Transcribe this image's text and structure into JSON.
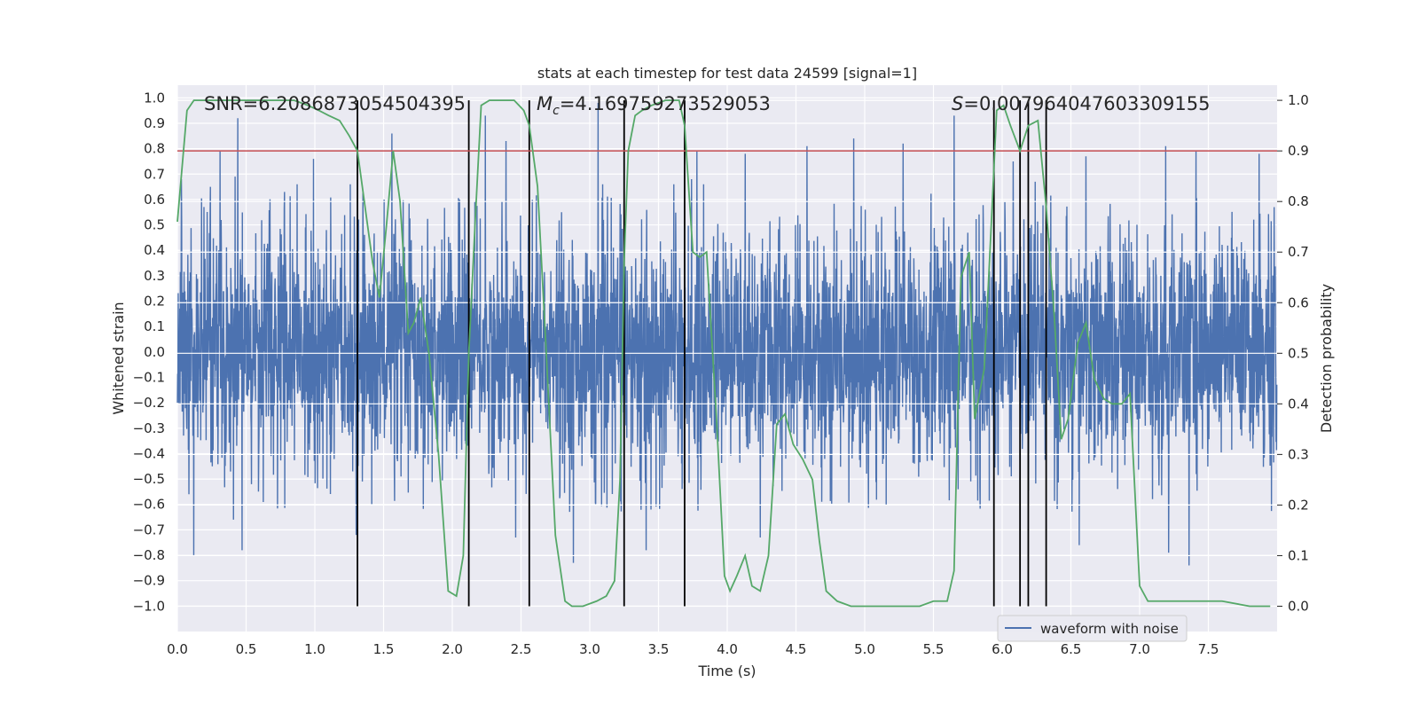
{
  "chart_data": {
    "type": "line",
    "title": "stats at each timestep for test data 24599 [signal=1]",
    "xlabel": "Time (s)",
    "ylabel": "Whitened strain",
    "y2label": "Detection probability",
    "xlim": [
      0.0,
      8.0
    ],
    "ylim": [
      -1.1,
      1.05
    ],
    "y2lim": [
      -0.05,
      1.03
    ],
    "x_ticks": [
      "0.0",
      "0.5",
      "1.0",
      "1.5",
      "2.0",
      "2.5",
      "3.0",
      "3.5",
      "4.0",
      "4.5",
      "5.0",
      "5.5",
      "6.0",
      "6.5",
      "7.0",
      "7.5"
    ],
    "y_ticks": [
      "1.0",
      "0.9",
      "0.8",
      "0.7",
      "0.6",
      "0.5",
      "0.4",
      "0.3",
      "0.2",
      "0.1",
      "0.0",
      "-0.1",
      "-0.2",
      "-0.3",
      "-0.4",
      "-0.5",
      "-0.6",
      "-0.7",
      "-0.8",
      "-0.9",
      "-1.0"
    ],
    "y2_ticks": [
      "1.0",
      "0.9",
      "0.8",
      "0.7",
      "0.6",
      "0.5",
      "0.4",
      "0.3",
      "0.2",
      "0.1",
      "0.0"
    ],
    "annotations": {
      "snr": "SNR=6.2086873054504395",
      "mc_symbol": "M",
      "mc_sub": "c",
      "mc_value": "=4.169759273529053",
      "s_symbol": "S",
      "s_value": "=0.007964047603309155"
    },
    "threshold": 0.9,
    "threshold_color": "#c44e52",
    "vertical_lines": [
      1.31,
      2.12,
      2.56,
      3.25,
      3.69,
      5.94,
      6.13,
      6.19,
      6.32
    ],
    "legend": {
      "label": "waveform with noise",
      "location": "lower-right"
    },
    "series": [
      {
        "name": "waveform with noise",
        "color": "#4c72b0",
        "axis": "left",
        "n_samples": 4096,
        "core_amplitude": 0.38,
        "peaks": [
          {
            "t": 0.03,
            "v": 0.68
          },
          {
            "t": 0.24,
            "v": 0.65
          },
          {
            "t": 0.31,
            "v": 0.79
          },
          {
            "t": 0.42,
            "v": 0.69
          },
          {
            "t": 0.44,
            "v": 0.92
          },
          {
            "t": 0.47,
            "v": 0.79
          },
          {
            "t": 0.78,
            "v": 0.63
          },
          {
            "t": 0.99,
            "v": 0.76
          },
          {
            "t": 1.56,
            "v": 0.86
          },
          {
            "t": 2.12,
            "v": 0.7
          },
          {
            "t": 2.24,
            "v": 0.93
          },
          {
            "t": 2.39,
            "v": 0.83
          },
          {
            "t": 3.06,
            "v": 0.98
          },
          {
            "t": 3.74,
            "v": 0.68
          },
          {
            "t": 3.78,
            "v": 0.79
          },
          {
            "t": 4.13,
            "v": 0.78
          },
          {
            "t": 4.58,
            "v": 0.81
          },
          {
            "t": 4.92,
            "v": 0.84
          },
          {
            "t": 5.28,
            "v": 0.82
          },
          {
            "t": 5.65,
            "v": 0.93
          },
          {
            "t": 6.08,
            "v": 0.75
          },
          {
            "t": 6.24,
            "v": 0.67
          },
          {
            "t": 6.61,
            "v": 0.77
          },
          {
            "t": 7.19,
            "v": 0.81
          },
          {
            "t": 7.41,
            "v": 0.79
          },
          {
            "t": 7.87,
            "v": 0.78
          },
          {
            "t": 0.12,
            "v": -0.8
          },
          {
            "t": 0.47,
            "v": -0.78
          },
          {
            "t": 1.3,
            "v": -0.72
          },
          {
            "t": 2.46,
            "v": -0.73
          },
          {
            "t": 2.88,
            "v": -0.83
          },
          {
            "t": 3.41,
            "v": -0.78
          },
          {
            "t": 4.24,
            "v": -0.73
          },
          {
            "t": 6.56,
            "v": -0.76
          },
          {
            "t": 7.21,
            "v": -0.79
          },
          {
            "t": 7.36,
            "v": -0.84
          }
        ]
      },
      {
        "name": "detection probability",
        "color": "#55a868",
        "axis": "right",
        "x": [
          0.0,
          0.07,
          0.12,
          0.25,
          0.4,
          0.55,
          0.7,
          0.85,
          0.95,
          1.03,
          1.1,
          1.18,
          1.25,
          1.31,
          1.38,
          1.42,
          1.47,
          1.52,
          1.57,
          1.62,
          1.68,
          1.72,
          1.77,
          1.83,
          1.9,
          1.97,
          2.03,
          2.08,
          2.12,
          2.17,
          2.21,
          2.27,
          2.33,
          2.45,
          2.52,
          2.56,
          2.62,
          2.68,
          2.75,
          2.82,
          2.87,
          2.95,
          3.05,
          3.12,
          3.18,
          3.22,
          3.25,
          3.28,
          3.33,
          3.38,
          3.45,
          3.55,
          3.65,
          3.69,
          3.75,
          3.8,
          3.85,
          3.92,
          3.98,
          4.02,
          4.07,
          4.13,
          4.18,
          4.24,
          4.3,
          4.36,
          4.42,
          4.48,
          4.55,
          4.62,
          4.67,
          4.72,
          4.8,
          4.9,
          5.0,
          5.2,
          5.4,
          5.5,
          5.6,
          5.65,
          5.7,
          5.76,
          5.8,
          5.87,
          5.92,
          5.96,
          6.01,
          6.06,
          6.13,
          6.19,
          6.26,
          6.32,
          6.38,
          6.43,
          6.48,
          6.55,
          6.61,
          6.67,
          6.74,
          6.8,
          6.87,
          6.93,
          7.0,
          7.06,
          7.12,
          7.2,
          7.4,
          7.6,
          7.8,
          7.95
        ],
        "y": [
          0.76,
          0.98,
          1.0,
          1.0,
          1.0,
          1.0,
          1.0,
          1.0,
          0.99,
          0.98,
          0.97,
          0.96,
          0.93,
          0.9,
          0.76,
          0.68,
          0.61,
          0.75,
          0.9,
          0.8,
          0.54,
          0.56,
          0.61,
          0.5,
          0.3,
          0.03,
          0.02,
          0.1,
          0.5,
          0.78,
          0.99,
          1.0,
          1.0,
          1.0,
          0.98,
          0.95,
          0.83,
          0.52,
          0.14,
          0.01,
          0.0,
          0.0,
          0.01,
          0.02,
          0.05,
          0.25,
          0.68,
          0.9,
          0.97,
          0.98,
          0.99,
          1.0,
          1.0,
          0.95,
          0.7,
          0.69,
          0.7,
          0.38,
          0.06,
          0.03,
          0.06,
          0.1,
          0.04,
          0.03,
          0.1,
          0.36,
          0.38,
          0.32,
          0.29,
          0.25,
          0.13,
          0.03,
          0.01,
          0.0,
          0.0,
          0.0,
          0.0,
          0.01,
          0.01,
          0.07,
          0.65,
          0.7,
          0.37,
          0.47,
          0.75,
          0.98,
          0.99,
          0.95,
          0.9,
          0.95,
          0.96,
          0.79,
          0.57,
          0.33,
          0.37,
          0.52,
          0.56,
          0.45,
          0.41,
          0.4,
          0.4,
          0.42,
          0.04,
          0.01,
          0.01,
          0.01,
          0.01,
          0.01,
          0.0,
          0.0
        ]
      }
    ]
  }
}
